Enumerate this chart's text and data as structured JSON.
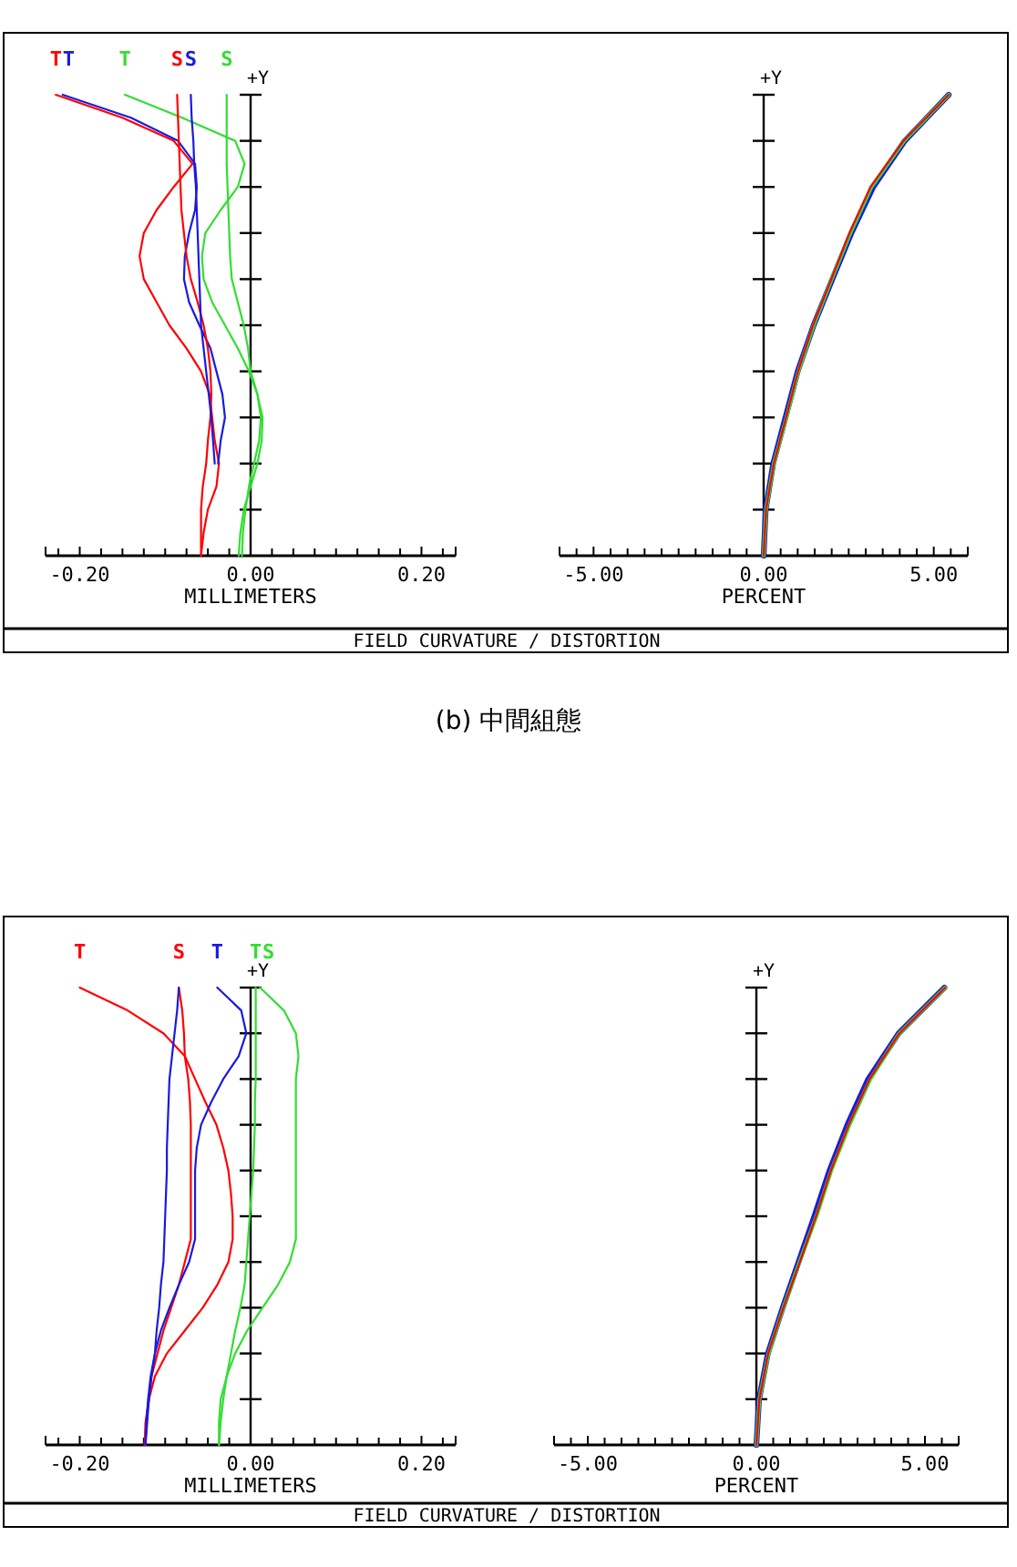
{
  "chart_data": [
    {
      "type": "line",
      "orientation": "horizontal",
      "title": "FIELD CURVATURE / DISTORTION",
      "xlabel": "MILLIMETERS",
      "ylabel": "+Y",
      "legend": "top left",
      "annotations": [
        "(b) 中間組態"
      ],
      "categories": [
        null,
        null,
        null,
        null,
        null,
        null,
        null,
        null,
        null,
        null,
        null,
        null,
        null,
        null,
        null,
        null,
        null,
        null,
        null,
        null,
        null
      ],
      "xlim": [
        -0.24,
        0.24
      ],
      "xticks": [
        {
          "value": -0.225,
          "label": null
        },
        {
          "value": -0.2,
          "label": "-0.20"
        },
        {
          "value": -0.175,
          "label": null
        },
        {
          "value": -0.15,
          "label": null
        },
        {
          "value": -0.125,
          "label": null
        },
        {
          "value": -0.1,
          "label": null
        },
        {
          "value": -0.075,
          "label": null
        },
        {
          "value": -0.05,
          "label": null
        },
        {
          "value": -0.025,
          "label": null
        },
        {
          "value": 0,
          "label": "0.00"
        },
        {
          "value": 0.025,
          "label": null
        },
        {
          "value": 0.05,
          "label": null
        },
        {
          "value": 0.075,
          "label": null
        },
        {
          "value": 0.1,
          "label": null
        },
        {
          "value": 0.125,
          "label": null
        },
        {
          "value": 0.15,
          "label": null
        },
        {
          "value": 0.175,
          "label": null
        },
        {
          "value": 0.2,
          "label": "0.20"
        },
        {
          "value": 0.225,
          "label": null
        }
      ],
      "series": [
        {
          "name": "T",
          "color": "#ff0000",
          "values": [
            -0.228,
            -0.15,
            -0.09,
            -0.068,
            -0.09,
            -0.11,
            -0.125,
            -0.13,
            -0.125,
            -0.11,
            -0.095,
            -0.075,
            -0.058,
            -0.048,
            -0.045,
            -0.042,
            -0.037,
            -0.04,
            -0.05,
            -0.055,
            -0.058
          ]
        },
        {
          "name": "T",
          "color": "#1a1ae0",
          "values": [
            -0.22,
            -0.14,
            -0.085,
            -0.065,
            -0.063,
            -0.065,
            -0.072,
            -0.077,
            -0.078,
            -0.072,
            -0.06,
            -0.047,
            -0.04,
            -0.033,
            -0.03,
            -0.035,
            -0.038,
            null,
            null,
            null,
            null
          ]
        },
        {
          "name": "T",
          "color": "#33dd33",
          "values": [
            -0.147,
            -0.08,
            -0.018,
            -0.007,
            -0.015,
            -0.035,
            -0.053,
            -0.057,
            -0.055,
            -0.045,
            -0.03,
            -0.015,
            -0.002,
            0.008,
            0.014,
            0.013,
            0.008,
            0.0,
            -0.008,
            -0.012,
            -0.014
          ]
        },
        {
          "name": "S",
          "color": "#ff0000",
          "values": [
            -0.086,
            -0.085,
            -0.084,
            -0.083,
            -0.082,
            -0.081,
            -0.078,
            -0.075,
            -0.07,
            -0.062,
            -0.055,
            -0.05,
            -0.047,
            -0.046,
            -0.047,
            -0.05,
            -0.052,
            -0.056,
            -0.058,
            -0.058,
            -0.058
          ]
        },
        {
          "name": "S",
          "color": "#1a1ae0",
          "values": [
            -0.07,
            -0.069,
            -0.067,
            -0.066,
            -0.064,
            -0.063,
            -0.062,
            -0.061,
            -0.06,
            -0.059,
            -0.058,
            -0.055,
            -0.052,
            -0.049,
            -0.046,
            -0.044,
            -0.042,
            null,
            null,
            null,
            null
          ]
        },
        {
          "name": "S",
          "color": "#33dd33",
          "values": [
            -0.028,
            -0.028,
            -0.028,
            -0.028,
            -0.027,
            -0.026,
            -0.025,
            -0.024,
            -0.022,
            -0.015,
            -0.008,
            -0.003,
            0.0,
            0.008,
            0.012,
            0.01,
            0.004,
            -0.002,
            -0.006,
            -0.009,
            -0.01
          ]
        }
      ]
    },
    {
      "type": "line",
      "orientation": "horizontal",
      "xlabel": "PERCENT",
      "ylabel": "+Y",
      "categories": [
        null,
        null,
        null,
        null,
        null,
        null,
        null,
        null,
        null,
        null,
        null
      ],
      "xlim": [
        -6,
        6
      ],
      "xticks": [
        {
          "value": -5.5,
          "label": null
        },
        {
          "value": -5,
          "label": "-5.00"
        },
        {
          "value": -4.5,
          "label": null
        },
        {
          "value": -4,
          "label": null
        },
        {
          "value": -3.5,
          "label": null
        },
        {
          "value": -3,
          "label": null
        },
        {
          "value": -2.5,
          "label": null
        },
        {
          "value": -2,
          "label": null
        },
        {
          "value": -1.5,
          "label": null
        },
        {
          "value": -1,
          "label": null
        },
        {
          "value": -0.5,
          "label": null
        },
        {
          "value": 0,
          "label": "0.00"
        },
        {
          "value": 0.5,
          "label": null
        },
        {
          "value": 1,
          "label": null
        },
        {
          "value": 1.5,
          "label": null
        },
        {
          "value": 2,
          "label": null
        },
        {
          "value": 2.5,
          "label": null
        },
        {
          "value": 3,
          "label": null
        },
        {
          "value": 3.5,
          "label": null
        },
        {
          "value": 4,
          "label": null
        },
        {
          "value": 4.5,
          "label": null
        },
        {
          "value": 5,
          "label": "5.00"
        },
        {
          "value": 5.5,
          "label": null
        }
      ],
      "series": [
        {
          "color": "#1a1ae0",
          "values": [
            5.44,
            4.15,
            3.22,
            2.58,
            2.02,
            1.47,
            1.0,
            0.64,
            0.28,
            0.06,
            0
          ]
        },
        {
          "color": "#33dd33",
          "values": [
            5.44,
            4.13,
            3.17,
            2.55,
            2.0,
            1.47,
            1.02,
            0.67,
            0.3,
            0.07,
            0
          ]
        },
        {
          "color": "#ff0000",
          "values": [
            5.44,
            4.11,
            3.14,
            2.52,
            1.99,
            1.45,
            1.01,
            0.66,
            0.3,
            0.07,
            0
          ]
        }
      ]
    },
    {
      "type": "line",
      "orientation": "horizontal",
      "title": "FIELD CURVATURE / DISTORTION",
      "xlabel": "MILLIMETERS",
      "ylabel": "+Y",
      "legend": "top left",
      "categories": [
        null,
        null,
        null,
        null,
        null,
        null,
        null,
        null,
        null,
        null,
        null,
        null,
        null,
        null,
        null,
        null,
        null,
        null,
        null,
        null,
        null
      ],
      "xlim": [
        -0.24,
        0.24
      ],
      "xticks": [
        {
          "value": -0.225,
          "label": null
        },
        {
          "value": -0.2,
          "label": "-0.20"
        },
        {
          "value": -0.175,
          "label": null
        },
        {
          "value": -0.15,
          "label": null
        },
        {
          "value": -0.125,
          "label": null
        },
        {
          "value": -0.1,
          "label": null
        },
        {
          "value": -0.075,
          "label": null
        },
        {
          "value": -0.05,
          "label": null
        },
        {
          "value": -0.025,
          "label": null
        },
        {
          "value": 0,
          "label": "0.00"
        },
        {
          "value": 0.025,
          "label": null
        },
        {
          "value": 0.05,
          "label": null
        },
        {
          "value": 0.075,
          "label": null
        },
        {
          "value": 0.1,
          "label": null
        },
        {
          "value": 0.125,
          "label": null
        },
        {
          "value": 0.15,
          "label": null
        },
        {
          "value": 0.175,
          "label": null
        },
        {
          "value": 0.2,
          "label": "0.20"
        },
        {
          "value": 0.225,
          "label": null
        }
      ],
      "series": [
        {
          "name": "T",
          "color": "#ff0000",
          "values": [
            -0.2,
            -0.144,
            -0.102,
            -0.077,
            -0.065,
            -0.053,
            -0.04,
            -0.032,
            -0.026,
            -0.023,
            -0.021,
            -0.021,
            -0.026,
            -0.039,
            -0.056,
            -0.077,
            -0.098,
            -0.112,
            -0.119,
            -0.123,
            -0.124
          ]
        },
        {
          "name": "S",
          "color": "#ff0000",
          "values": [
            -0.084,
            -0.08,
            -0.078,
            -0.077,
            -0.073,
            -0.071,
            -0.07,
            -0.07,
            -0.07,
            -0.07,
            -0.07,
            -0.07,
            -0.077,
            -0.084,
            -0.093,
            -0.102,
            -0.109,
            -0.116,
            -0.119,
            -0.122,
            -0.124
          ]
        },
        {
          "name": "T",
          "color": "#1a1ae0",
          "values": [
            -0.039,
            -0.011,
            -0.005,
            -0.014,
            -0.032,
            -0.046,
            -0.058,
            -0.063,
            -0.065,
            -0.065,
            -0.065,
            -0.065,
            -0.072,
            -0.084,
            -0.095,
            -0.105,
            -0.112,
            -0.117,
            -0.12,
            -0.122,
            -0.123
          ]
        },
        {
          "color": "#1a1ae0",
          "values": [
            -0.084,
            -0.086,
            -0.089,
            -0.092,
            -0.095,
            -0.096,
            -0.097,
            -0.098,
            -0.098,
            -0.099,
            -0.1,
            -0.101,
            -0.102,
            -0.105,
            -0.107,
            -0.11,
            -0.112,
            -0.116,
            -0.119,
            -0.121,
            -0.123
          ]
        },
        {
          "name": "T",
          "color": "#33dd33",
          "values": [
            0.006,
            0.006,
            0.006,
            0.006,
            0.006,
            0.005,
            0.005,
            0.004,
            0.003,
            0.001,
            -0.001,
            -0.003,
            -0.005,
            -0.007,
            -0.012,
            -0.018,
            -0.023,
            -0.028,
            -0.032,
            -0.035,
            -0.037
          ]
        },
        {
          "name": "S",
          "color": "#33dd33",
          "values": [
            0.011,
            0.039,
            0.053,
            0.056,
            0.053,
            0.053,
            0.053,
            0.053,
            0.053,
            0.053,
            0.053,
            0.053,
            0.046,
            0.032,
            0.014,
            -0.004,
            -0.018,
            -0.028,
            -0.035,
            -0.037,
            -0.037
          ]
        }
      ]
    },
    {
      "type": "line",
      "orientation": "horizontal",
      "xlabel": "PERCENT",
      "ylabel": "+Y",
      "categories": [
        null,
        null,
        null,
        null,
        null,
        null,
        null,
        null,
        null,
        null,
        null
      ],
      "xlim": [
        -6,
        6
      ],
      "xticks": [
        {
          "value": -5.5,
          "label": null
        },
        {
          "value": -5,
          "label": "-5.00"
        },
        {
          "value": -4.5,
          "label": null
        },
        {
          "value": -4,
          "label": null
        },
        {
          "value": -3.5,
          "label": null
        },
        {
          "value": -3,
          "label": null
        },
        {
          "value": -2.5,
          "label": null
        },
        {
          "value": -2,
          "label": null
        },
        {
          "value": -1.5,
          "label": null
        },
        {
          "value": -1,
          "label": null
        },
        {
          "value": -0.5,
          "label": null
        },
        {
          "value": 0,
          "label": "0.00"
        },
        {
          "value": 0.5,
          "label": null
        },
        {
          "value": 1,
          "label": null
        },
        {
          "value": 1.5,
          "label": null
        },
        {
          "value": 2,
          "label": null
        },
        {
          "value": 2.5,
          "label": null
        },
        {
          "value": 3,
          "label": null
        },
        {
          "value": 3.5,
          "label": null
        },
        {
          "value": 4,
          "label": null
        },
        {
          "value": 4.5,
          "label": null
        },
        {
          "value": 5,
          "label": "5.00"
        },
        {
          "value": 5.5,
          "label": null
        }
      ],
      "series": [
        {
          "color": "#1a1ae0",
          "values": [
            5.58,
            4.22,
            3.32,
            2.7,
            2.17,
            1.72,
            1.25,
            0.78,
            0.34,
            0.08,
            0
          ]
        },
        {
          "color": "#33dd33",
          "values": [
            5.6,
            4.24,
            3.38,
            2.76,
            2.22,
            1.78,
            1.28,
            0.8,
            0.36,
            0.09,
            0
          ]
        },
        {
          "color": "#ff0000",
          "values": [
            5.6,
            4.24,
            3.36,
            2.74,
            2.21,
            1.77,
            1.29,
            0.8,
            0.35,
            0.09,
            0
          ]
        }
      ]
    }
  ]
}
